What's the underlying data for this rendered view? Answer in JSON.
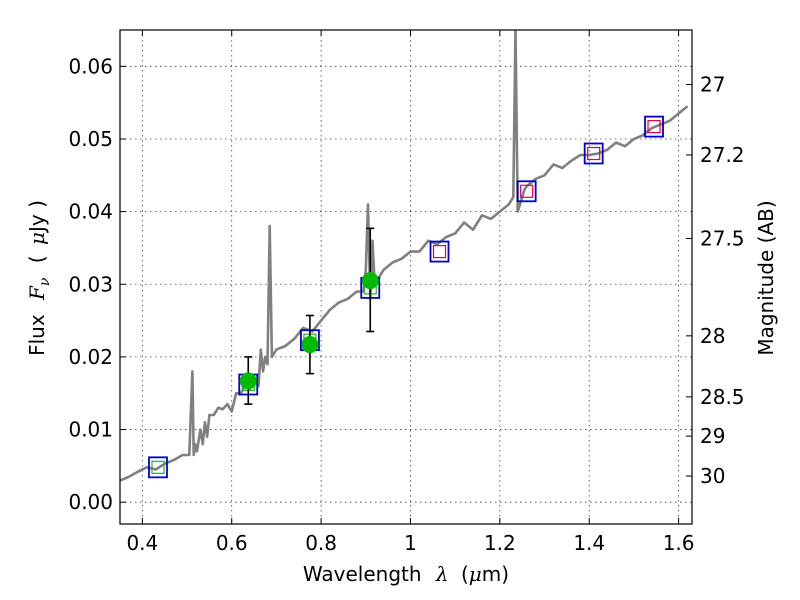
{
  "chart_data": {
    "type": "scatter",
    "xlabel_text": "Wavelength",
    "xlabel_var": "λ",
    "xlabel_unit_open": "(",
    "xlabel_unit_mu": "μ",
    "xlabel_unit_rest": "m)",
    "ylabel_text": "Flux",
    "ylabel_var": "F",
    "ylabel_sub": "ν",
    "ylabel_unit_open": "(",
    "ylabel_unit_mu": "μ",
    "ylabel_unit_rest": "Jy )",
    "y2label": "Magnitude (AB)",
    "xlim": [
      0.35,
      1.63
    ],
    "ylim": [
      -0.003,
      0.065
    ],
    "grid": true,
    "x_ticks": [
      0.4,
      0.6,
      0.8,
      1.0,
      1.2,
      1.4,
      1.6
    ],
    "x_tick_labels": [
      "0.4",
      "0.6",
      "0.8",
      "1",
      "1.2",
      "1.4",
      "1.6"
    ],
    "y_ticks": [
      0.0,
      0.01,
      0.02,
      0.03,
      0.04,
      0.05,
      0.06
    ],
    "y_tick_labels": [
      "0.00",
      "0.01",
      "0.02",
      "0.03",
      "0.04",
      "0.05",
      "0.06"
    ],
    "y2_ticks": [
      {
        "label": "27",
        "flux": 0.0575
      },
      {
        "label": "27.2",
        "flux": 0.0478
      },
      {
        "label": "27.5",
        "flux": 0.0363
      },
      {
        "label": "28",
        "flux": 0.0229
      },
      {
        "label": "28.5",
        "flux": 0.0145
      },
      {
        "label": "29",
        "flux": 0.0091
      },
      {
        "label": "30",
        "flux": 0.0036
      }
    ],
    "series": [
      {
        "kind": "spectrum",
        "color": "#808080",
        "x": [
          0.35,
          0.37,
          0.39,
          0.41,
          0.43,
          0.45,
          0.47,
          0.49,
          0.505,
          0.512,
          0.515,
          0.518,
          0.522,
          0.53,
          0.535,
          0.54,
          0.545,
          0.55,
          0.56,
          0.57,
          0.58,
          0.59,
          0.6,
          0.61,
          0.62,
          0.63,
          0.64,
          0.65,
          0.66,
          0.665,
          0.67,
          0.675,
          0.68,
          0.685,
          0.69,
          0.7,
          0.72,
          0.74,
          0.76,
          0.78,
          0.8,
          0.82,
          0.84,
          0.86,
          0.88,
          0.895,
          0.9,
          0.905,
          0.91,
          0.915,
          0.92,
          0.93,
          0.94,
          0.96,
          0.98,
          1.0,
          1.02,
          1.04,
          1.06,
          1.08,
          1.1,
          1.12,
          1.14,
          1.16,
          1.18,
          1.2,
          1.22,
          1.23,
          1.235,
          1.24,
          1.245,
          1.25,
          1.255,
          1.26,
          1.28,
          1.3,
          1.32,
          1.34,
          1.36,
          1.38,
          1.4,
          1.42,
          1.44,
          1.46,
          1.48,
          1.5,
          1.52,
          1.54,
          1.56,
          1.58,
          1.6,
          1.62
        ],
        "y": [
          0.003,
          0.0035,
          0.0042,
          0.0048,
          0.0045,
          0.0053,
          0.0058,
          0.0065,
          0.0065,
          0.018,
          0.0065,
          0.008,
          0.007,
          0.01,
          0.008,
          0.011,
          0.009,
          0.012,
          0.012,
          0.013,
          0.0128,
          0.0135,
          0.0125,
          0.015,
          0.015,
          0.016,
          0.0155,
          0.017,
          0.016,
          0.021,
          0.018,
          0.02,
          0.019,
          0.038,
          0.02,
          0.021,
          0.0215,
          0.0225,
          0.024,
          0.0235,
          0.025,
          0.0265,
          0.0275,
          0.028,
          0.029,
          0.029,
          0.032,
          0.041,
          0.028,
          0.036,
          0.03,
          0.031,
          0.032,
          0.033,
          0.0335,
          0.0345,
          0.0345,
          0.036,
          0.0355,
          0.0365,
          0.037,
          0.0385,
          0.0375,
          0.0395,
          0.039,
          0.04,
          0.041,
          0.042,
          0.065,
          0.04,
          0.041,
          0.042,
          0.043,
          0.0435,
          0.0445,
          0.045,
          0.0465,
          0.046,
          0.047,
          0.0478,
          0.0478,
          0.048,
          0.0485,
          0.0495,
          0.049,
          0.05,
          0.0505,
          0.0515,
          0.052,
          0.0525,
          0.0535,
          0.0545
        ]
      },
      {
        "kind": "model-box",
        "color": "#0000cc",
        "x": [
          0.435,
          0.637,
          0.775,
          0.91,
          1.065,
          1.26,
          1.41,
          1.545
        ],
        "y": [
          0.0048,
          0.0162,
          0.0223,
          0.0295,
          0.0345,
          0.0428,
          0.048,
          0.0517
        ]
      },
      {
        "kind": "box-inner",
        "colors": [
          "#33aa33",
          "#33aa33",
          "#33aa33",
          "#33aa33",
          "#e0004c",
          "#e0004c",
          "#e0004c",
          "#e0004c"
        ],
        "x": [
          0.435,
          0.637,
          0.775,
          0.91,
          1.065,
          1.26,
          1.41,
          1.545
        ],
        "y": [
          0.0048,
          0.0162,
          0.0223,
          0.0295,
          0.0345,
          0.0428,
          0.048,
          0.0517
        ]
      },
      {
        "kind": "observed",
        "color": "#00bb00",
        "x": [
          0.637,
          0.775,
          0.91
        ],
        "y": [
          0.0167,
          0.0217,
          0.0305
        ],
        "yerr_low": [
          0.0135,
          0.0177,
          0.0235
        ],
        "yerr_high": [
          0.02,
          0.0257,
          0.0377
        ]
      }
    ]
  }
}
